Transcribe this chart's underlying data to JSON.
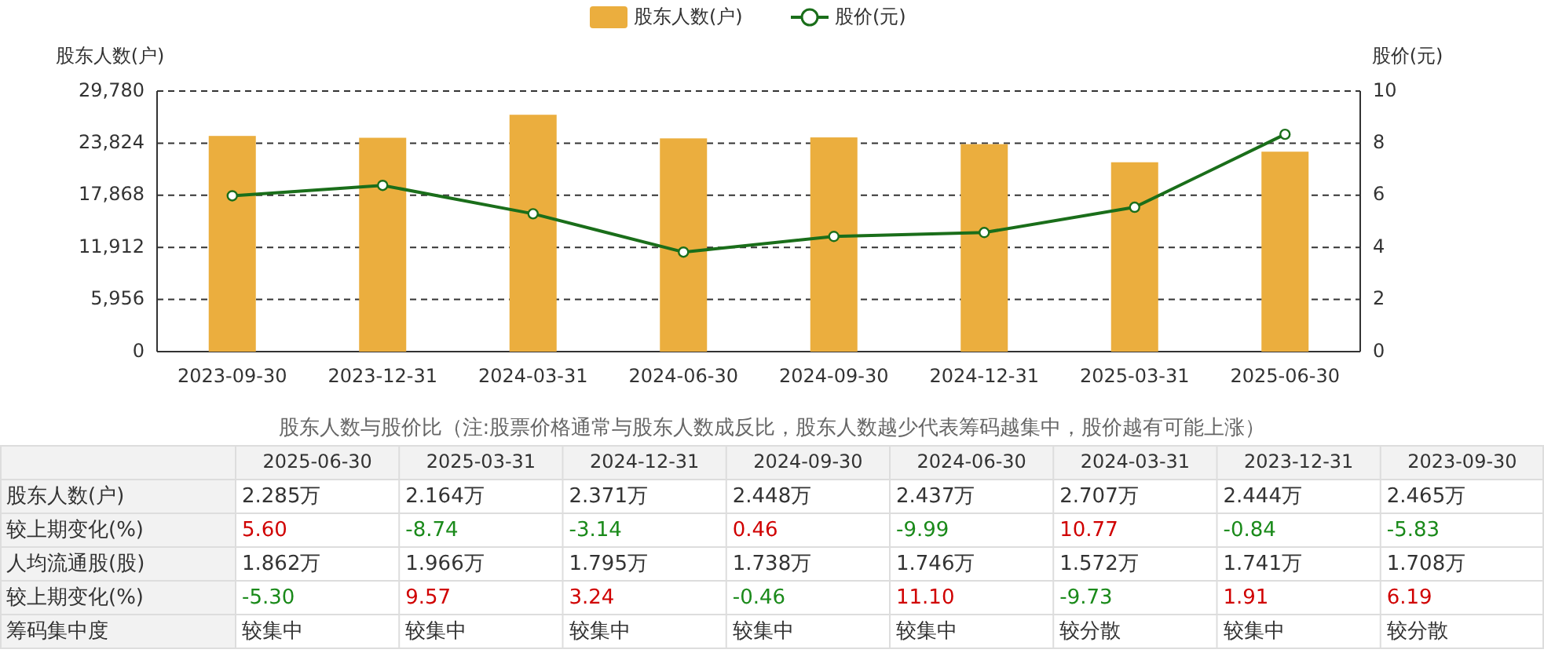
{
  "chart_data": {
    "type": "bar",
    "categories": [
      "2023-09-30",
      "2023-12-31",
      "2024-03-31",
      "2024-06-30",
      "2024-09-30",
      "2024-12-31",
      "2025-03-31",
      "2025-06-30"
    ],
    "series": [
      {
        "name": "股东人数(户)",
        "color": "#ebae3e",
        "values": [
          24650,
          24440,
          27070,
          24370,
          24480,
          23710,
          21640,
          22850
        ]
      },
      {
        "name": "股价(元)",
        "type": "line",
        "axis": "y2",
        "color": "#1a6e1a",
        "marker": "circle",
        "values": [
          5.98,
          6.38,
          5.29,
          3.82,
          4.42,
          4.57,
          5.54,
          8.34
        ]
      }
    ],
    "ylabel": "股东人数(户)",
    "y2label": "股价(元)",
    "ylim": [
      0,
      29780
    ],
    "yticks": [
      0,
      {
        "value": 5956,
        "label": "5,956"
      },
      {
        "value": 11912,
        "label": "11,912"
      },
      {
        "value": 17868,
        "label": "17,868"
      },
      {
        "value": 23824,
        "label": "23,824"
      },
      {
        "value": 29780,
        "label": "29,780"
      }
    ],
    "y2lim": [
      0,
      10
    ],
    "y2ticks": [
      0,
      2,
      4,
      6,
      8,
      10
    ],
    "grid": "y",
    "legend": "top",
    "annotations": [
      "股东人数与股价比（注:股票价格通常与股东人数成反比，股东人数越少代表筹码越集中，股价越有可能上涨）",
      "股东人数(户)",
      "2.285万",
      "2.164万",
      "2.371万",
      "2.448万",
      "2.437万",
      "2.707万",
      "2.444万",
      "2.465万",
      "较上期变化(%)",
      "5.60",
      "-8.74",
      "-3.14",
      "0.46",
      "-9.99",
      "10.77",
      "-0.84",
      "-5.83",
      "人均流通股(股)",
      "1.862万",
      "1.966万",
      "1.795万",
      "1.738万",
      "1.746万",
      "1.572万",
      "1.741万",
      "1.708万",
      "较上期变化(%)",
      "-5.30",
      "9.57",
      "3.24",
      "-0.46",
      "11.10",
      "-9.73",
      "1.91",
      "6.19",
      "筹码集中度",
      "较集中",
      "较集中",
      "较集中",
      "较集中",
      "较集中",
      "较分散",
      "较集中",
      "较分散"
    ]
  }
}
